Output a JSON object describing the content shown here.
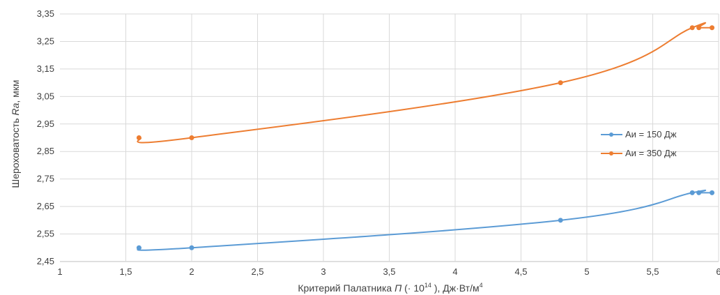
{
  "chart_data": {
    "type": "line",
    "xlabel": {
      "prefix": "Критерий Палатника ",
      "italic": "П",
      "mid": " (· 10",
      "sup": "14",
      "suffix": " ), Дж·Вт/м",
      "sup2": "4"
    },
    "ylabel": {
      "prefix": "Шероховатость ",
      "italic": "Ra",
      "suffix": ", мкм"
    },
    "xlim": [
      1,
      6
    ],
    "ylim": [
      2.45,
      3.35
    ],
    "x_ticks": [
      {
        "v": 1,
        "label": "1"
      },
      {
        "v": 1.5,
        "label": "1,5"
      },
      {
        "v": 2,
        "label": "2"
      },
      {
        "v": 2.5,
        "label": "2,5"
      },
      {
        "v": 3,
        "label": "3"
      },
      {
        "v": 3.5,
        "label": "3,5"
      },
      {
        "v": 4,
        "label": "4"
      },
      {
        "v": 4.5,
        "label": "4,5"
      },
      {
        "v": 5,
        "label": "5"
      },
      {
        "v": 5.5,
        "label": "5,5"
      },
      {
        "v": 6,
        "label": "6"
      }
    ],
    "y_ticks": [
      {
        "v": 2.45,
        "label": "2,45"
      },
      {
        "v": 2.55,
        "label": "2,55"
      },
      {
        "v": 2.65,
        "label": "2,65"
      },
      {
        "v": 2.75,
        "label": "2,75"
      },
      {
        "v": 2.85,
        "label": "2,85"
      },
      {
        "v": 2.95,
        "label": "2,95"
      },
      {
        "v": 3.05,
        "label": "3,05"
      },
      {
        "v": 3.15,
        "label": "3,15"
      },
      {
        "v": 3.25,
        "label": "3,25"
      },
      {
        "v": 3.35,
        "label": "3,35"
      }
    ],
    "grid": true,
    "legend_position": "right",
    "series": [
      {
        "name": "Аи = 150 Дж",
        "color": "#5b9bd5",
        "points": [
          [
            1.6,
            2.5
          ],
          [
            2.0,
            2.5
          ],
          [
            4.8,
            2.6
          ],
          [
            5.8,
            2.7
          ],
          [
            5.85,
            2.7
          ],
          [
            5.95,
            2.7
          ]
        ]
      },
      {
        "name": "Аи = 350 Дж",
        "color": "#ed7d31",
        "points": [
          [
            1.6,
            2.9
          ],
          [
            2.0,
            2.9
          ],
          [
            4.8,
            3.1
          ],
          [
            5.8,
            3.3
          ],
          [
            5.85,
            3.3
          ],
          [
            5.95,
            3.3
          ]
        ]
      }
    ]
  }
}
